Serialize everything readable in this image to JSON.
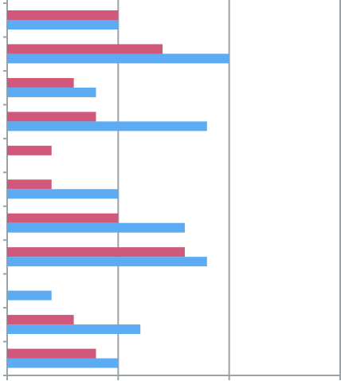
{
  "chart_data": {
    "type": "barh",
    "categories": [
      null,
      null,
      null,
      null,
      null,
      null,
      null,
      null,
      null,
      null,
      null
    ],
    "series": [
      {
        "color": "#d0587a",
        "values": [
          5,
          7,
          3,
          4,
          2,
          2,
          5,
          8,
          null,
          3,
          4
        ]
      },
      {
        "color": "#5dabf2",
        "values": [
          5,
          10,
          4,
          9,
          null,
          5,
          8,
          9,
          2,
          6,
          5
        ]
      }
    ],
    "xlim": [
      0,
      15
    ],
    "xticks": [
      0,
      5,
      10,
      15
    ],
    "grid": true
  }
}
